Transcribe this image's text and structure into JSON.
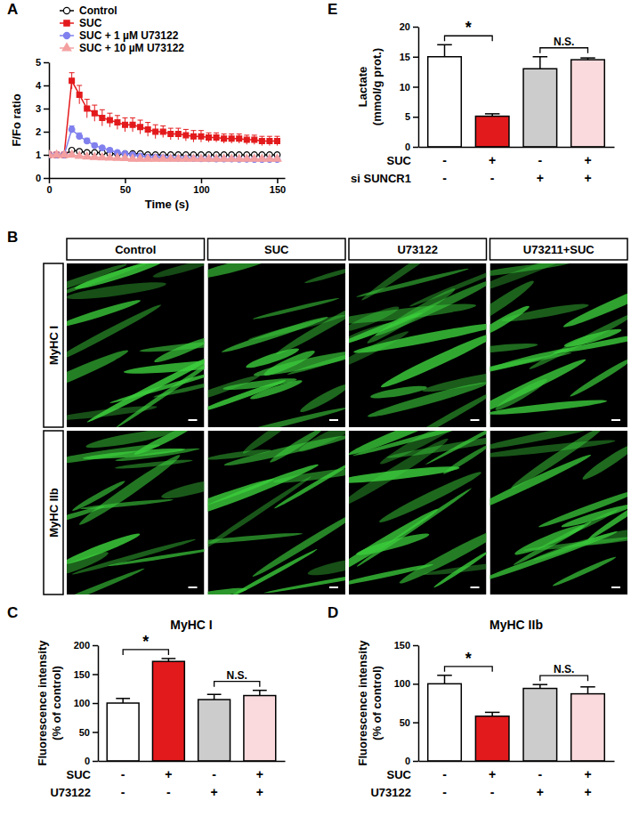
{
  "chart_data": [
    {
      "type": "line",
      "panel": "A",
      "x_label": "Time (s)",
      "y_label": "F/Fo ratio",
      "legend": "upper left",
      "x": [
        0,
        5,
        10,
        15,
        20,
        25,
        30,
        35,
        40,
        45,
        50,
        55,
        60,
        65,
        70,
        75,
        80,
        85,
        90,
        95,
        100,
        105,
        110,
        115,
        120,
        125,
        130,
        135,
        140,
        145,
        150
      ],
      "xlim": [
        0,
        155
      ],
      "xticks": [
        0,
        50,
        100,
        150
      ],
      "ylim": [
        0,
        5
      ],
      "yticks": [
        0,
        1,
        2,
        3,
        4,
        5
      ],
      "series": [
        {
          "name": "Control",
          "color": "#000000",
          "marker": "open-circle",
          "values": [
            1.0,
            1.0,
            1.0,
            1.2,
            1.15,
            1.1,
            1.1,
            1.1,
            1.05,
            1.05,
            1.05,
            1.05,
            1.05,
            1.0,
            1.0,
            1.0,
            1.0,
            1.0,
            1.0,
            1.0,
            1.0,
            1.0,
            1.0,
            1.0,
            1.0,
            1.0,
            1.0,
            1.0,
            1.0,
            1.0,
            1.0
          ],
          "errors": [
            0.05,
            0.05,
            0.05,
            0.05,
            0.05,
            0.05,
            0.05,
            0.05,
            0.05,
            0.05,
            0.05,
            0.05,
            0.05,
            0.05,
            0.05,
            0.05,
            0.05,
            0.05,
            0.05,
            0.05,
            0.05,
            0.05,
            0.05,
            0.05,
            0.05,
            0.05,
            0.05,
            0.05,
            0.05,
            0.05,
            0.05
          ]
        },
        {
          "name": "SUC",
          "color": "#e31a1c",
          "marker": "square",
          "values": [
            1.0,
            1.0,
            1.0,
            4.2,
            3.6,
            3.0,
            2.8,
            2.6,
            2.5,
            2.4,
            2.3,
            2.3,
            2.2,
            2.1,
            2.0,
            2.0,
            1.9,
            1.9,
            1.85,
            1.8,
            1.8,
            1.75,
            1.75,
            1.7,
            1.7,
            1.7,
            1.65,
            1.65,
            1.6,
            1.6,
            1.6
          ],
          "errors": [
            0.05,
            0.05,
            0.05,
            0.35,
            0.4,
            0.4,
            0.35,
            0.35,
            0.3,
            0.3,
            0.3,
            0.3,
            0.3,
            0.3,
            0.3,
            0.25,
            0.25,
            0.25,
            0.25,
            0.25,
            0.25,
            0.2,
            0.2,
            0.2,
            0.2,
            0.2,
            0.2,
            0.2,
            0.2,
            0.2,
            0.2
          ]
        },
        {
          "name": "SUC + 1 µM U73122",
          "color": "#8080ee",
          "marker": "circle",
          "values": [
            1.0,
            1.0,
            1.0,
            2.1,
            1.8,
            1.6,
            1.4,
            1.3,
            1.2,
            1.1,
            1.05,
            1.0,
            0.95,
            0.9,
            0.9,
            0.88,
            0.86,
            0.85,
            0.85,
            0.84,
            0.83,
            0.83,
            0.82,
            0.82,
            0.82,
            0.81,
            0.81,
            0.8,
            0.8,
            0.8,
            0.8
          ],
          "errors": [
            0.05,
            0.05,
            0.05,
            0.15,
            0.15,
            0.12,
            0.1,
            0.08,
            0.08,
            0.08,
            0.08,
            0.08,
            0.08,
            0.08,
            0.08,
            0.08,
            0.08,
            0.08,
            0.08,
            0.08,
            0.08,
            0.08,
            0.08,
            0.08,
            0.08,
            0.08,
            0.08,
            0.08,
            0.08,
            0.08,
            0.08
          ]
        },
        {
          "name": "SUC + 10 µM U73122",
          "color": "#f4a0a0",
          "marker": "triangle",
          "values": [
            1.0,
            1.0,
            1.0,
            1.0,
            0.95,
            0.92,
            0.9,
            0.88,
            0.87,
            0.86,
            0.85,
            0.82,
            0.82,
            0.82,
            0.82,
            0.82,
            0.82,
            0.82,
            0.82,
            0.82,
            0.82,
            0.82,
            0.82,
            0.82,
            0.82,
            0.82,
            0.82,
            0.82,
            0.82,
            0.82,
            0.82
          ],
          "errors": [
            0.04,
            0.04,
            0.04,
            0.04,
            0.04,
            0.04,
            0.04,
            0.04,
            0.04,
            0.04,
            0.04,
            0.04,
            0.04,
            0.04,
            0.04,
            0.04,
            0.04,
            0.04,
            0.04,
            0.04,
            0.04,
            0.04,
            0.04,
            0.04,
            0.04,
            0.04,
            0.04,
            0.04,
            0.04,
            0.04,
            0.04
          ]
        }
      ]
    },
    {
      "type": "image_grid",
      "panel": "B",
      "columns": [
        "Control",
        "SUC",
        "U73122",
        "U73211+SUC"
      ],
      "rows": [
        "MyHC I",
        "MyHC IIb"
      ]
    },
    {
      "type": "bar",
      "panel": "C",
      "title": "MyHC I",
      "y_label": [
        "Fluorescence intensity",
        "(% of control)"
      ],
      "categories": [
        null,
        null,
        null,
        null
      ],
      "values": [
        100,
        172,
        106,
        113
      ],
      "errors": [
        8,
        5,
        9,
        9
      ],
      "colors": [
        "#ffffff",
        "#e31a1c",
        "#cccccc",
        "#fadadd"
      ],
      "ylim": [
        0,
        200
      ],
      "yticks": [
        0,
        50,
        100,
        150,
        200
      ],
      "conditions": [
        {
          "name": "SUC",
          "values": [
            "-",
            "+",
            "-",
            "+"
          ]
        },
        {
          "name": "U73122",
          "values": [
            "-",
            "-",
            "+",
            "+"
          ]
        }
      ],
      "annotations": [
        {
          "text": "*",
          "from": 0,
          "to": 1
        },
        {
          "text": "N.S.",
          "from": 2,
          "to": 3
        }
      ]
    },
    {
      "type": "bar",
      "panel": "D",
      "title": "MyHC IIb",
      "y_label": [
        "Fluorescence intensity",
        "(% of control)"
      ],
      "categories": [
        null,
        null,
        null,
        null
      ],
      "values": [
        100,
        58,
        94,
        87
      ],
      "errors": [
        11,
        5,
        5,
        9
      ],
      "colors": [
        "#ffffff",
        "#e31a1c",
        "#cccccc",
        "#fadadd"
      ],
      "ylim": [
        0,
        150
      ],
      "yticks": [
        0,
        50,
        100,
        150
      ],
      "conditions": [
        {
          "name": "SUC",
          "values": [
            "-",
            "+",
            "-",
            "+"
          ]
        },
        {
          "name": "U73122",
          "values": [
            "-",
            "-",
            "+",
            "+"
          ]
        }
      ],
      "annotations": [
        {
          "text": "*",
          "from": 0,
          "to": 1
        },
        {
          "text": "N.S.",
          "from": 2,
          "to": 3
        }
      ]
    },
    {
      "type": "bar",
      "panel": "E",
      "y_label": [
        "Lactate",
        "(mmol/g prot.)"
      ],
      "categories": [
        null,
        null,
        null,
        null
      ],
      "values": [
        15,
        5.1,
        13,
        14.5
      ],
      "errors": [
        2,
        0.4,
        2,
        0.3
      ],
      "colors": [
        "#ffffff",
        "#e31a1c",
        "#cccccc",
        "#fadadd"
      ],
      "ylim": [
        0,
        20
      ],
      "yticks": [
        0,
        5,
        10,
        15,
        20
      ],
      "conditions": [
        {
          "name": "SUC",
          "values": [
            "-",
            "+",
            "-",
            "+"
          ]
        },
        {
          "name": "si SUNCR1",
          "values": [
            "-",
            "-",
            "+",
            "+"
          ]
        }
      ],
      "annotations": [
        {
          "text": "*",
          "from": 0,
          "to": 1
        },
        {
          "text": "N.S.",
          "from": 2,
          "to": 3
        }
      ]
    }
  ]
}
